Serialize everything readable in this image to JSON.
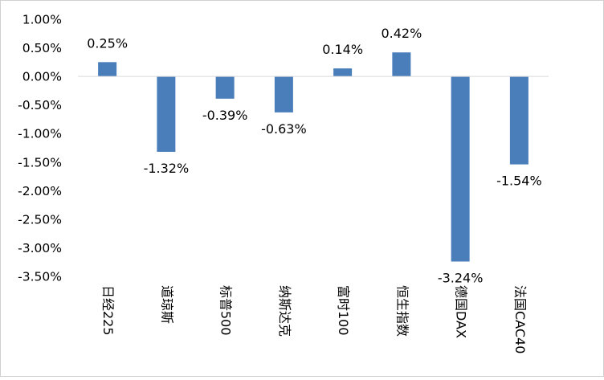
{
  "chart_data": {
    "type": "bar",
    "title": "",
    "xlabel": "",
    "ylabel": "",
    "categories": [
      "日经225",
      "道琼斯",
      "标普500",
      "纳斯达克",
      "富时100",
      "恒生指数",
      "德国DAX",
      "法国CAC40"
    ],
    "values": [
      0.25,
      -1.32,
      -0.39,
      -0.63,
      0.14,
      0.42,
      -3.24,
      -1.54
    ],
    "data_labels": [
      "0.25%",
      "-1.32%",
      "-0.39%",
      "-0.63%",
      "0.14%",
      "0.42%",
      "-3.24%",
      "-1.54%"
    ],
    "y_ticks": [
      1.0,
      0.5,
      0.0,
      -0.5,
      -1.0,
      -1.5,
      -2.0,
      -2.5,
      -3.0,
      -3.5
    ],
    "y_tick_labels": [
      "1.00%",
      "0.50%",
      "0.00%",
      "-0.50%",
      "-1.00%",
      "-1.50%",
      "-2.00%",
      "-2.50%",
      "-3.00%",
      "-3.50%"
    ],
    "ylim": [
      -3.5,
      1.0
    ],
    "grid": false,
    "legend": "none",
    "bar_color": "#4a7ebb",
    "axis_color": "#d9d9d9"
  }
}
